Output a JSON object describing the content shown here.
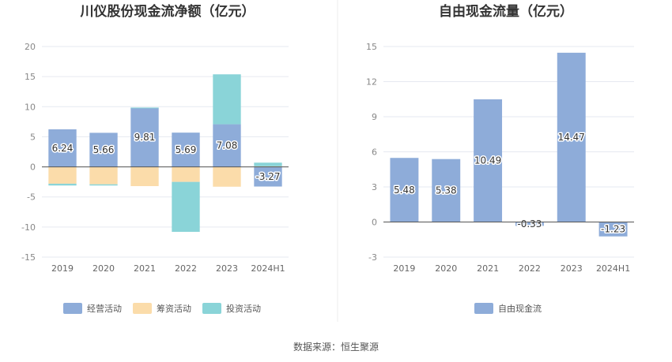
{
  "source": "数据来源：恒生聚源",
  "chart_data": [
    {
      "type": "bar",
      "stacked": true,
      "title": "川仪股份现金流净额（亿元）",
      "categories": [
        "2019",
        "2020",
        "2021",
        "2022",
        "2023",
        "2024H1"
      ],
      "ylim": [
        -15,
        20
      ],
      "yticks": [
        20,
        15,
        10,
        5,
        0,
        -5,
        -10,
        -15
      ],
      "legend_position": "bottom",
      "series": [
        {
          "name": "经营活动",
          "color": "#8eacd9",
          "values": [
            6.24,
            5.66,
            9.81,
            5.69,
            7.08,
            -3.27
          ]
        },
        {
          "name": "筹资活动",
          "color": "#fbdcaa",
          "values": [
            -2.8,
            -2.9,
            -3.2,
            -2.5,
            -3.3,
            0.1
          ]
        },
        {
          "name": "投资活动",
          "color": "#8ad4d8",
          "values": [
            -0.3,
            -0.2,
            0.05,
            -8.3,
            8.3,
            0.6
          ]
        }
      ],
      "data_labels": [
        "6.24",
        "5.66",
        "9.81",
        "5.69",
        "7.08",
        "-3.27"
      ]
    },
    {
      "type": "bar",
      "title": "自由现金流量（亿元）",
      "categories": [
        "2019",
        "2020",
        "2021",
        "2022",
        "2023",
        "2024H1"
      ],
      "ylim": [
        -3,
        15
      ],
      "yticks": [
        15,
        12,
        9,
        6,
        3,
        0,
        -3
      ],
      "legend_position": "bottom",
      "series": [
        {
          "name": "自由现金流",
          "color": "#8eacd9",
          "values": [
            5.48,
            5.38,
            10.49,
            -0.33,
            14.47,
            -1.23
          ]
        }
      ],
      "data_labels": [
        "5.48",
        "5.38",
        "10.49",
        "-0.33",
        "14.47",
        "-1.23"
      ]
    }
  ]
}
